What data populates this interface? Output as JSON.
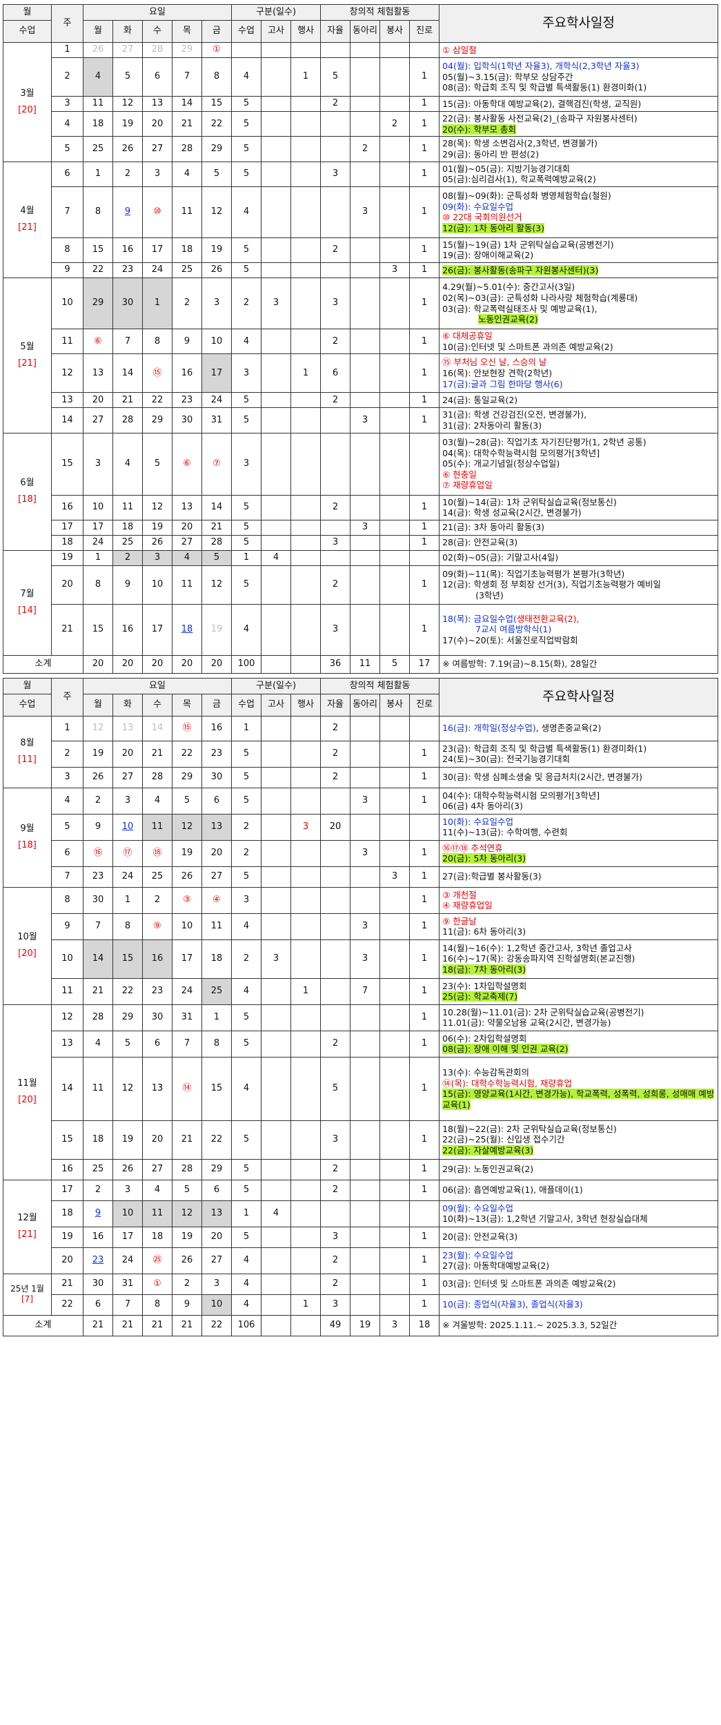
{
  "headers": {
    "month": "월",
    "week": "주",
    "yoil": "요일",
    "gubun": "구분(일수)",
    "act": "창의적 체험활동",
    "class_days": "수업",
    "mon": "월",
    "tue": "화",
    "wed": "수",
    "thu": "목",
    "fri": "금",
    "classes": "수업",
    "exam": "고사",
    "event": "행사",
    "self": "자율",
    "club": "동아리",
    "volunteer": "봉사",
    "career": "진로",
    "schedule": "주요학사일정"
  },
  "months": {
    "m3": {
      "name": "3월",
      "days": "[20]"
    },
    "m4": {
      "name": "4월",
      "days": "[21]"
    },
    "m5": {
      "name": "5월",
      "days": "[21]"
    },
    "m6": {
      "name": "6월",
      "days": "[18]"
    },
    "m7": {
      "name": "7월",
      "days": "[14]"
    },
    "m8": {
      "name": "8월",
      "days": "[11]"
    },
    "m9": {
      "name": "9월",
      "days": "[18]"
    },
    "m10": {
      "name": "10월",
      "days": "[20]"
    },
    "m11": {
      "name": "11월",
      "days": "[20]"
    },
    "m12": {
      "name": "12월",
      "days": "[21]"
    },
    "m1": {
      "name": "25년 1월",
      "days": "[7]"
    }
  },
  "rows": [
    {
      "w": "1",
      "d": [
        "26",
        "27",
        "28",
        "29",
        "①"
      ],
      "c": [
        "",
        "",
        "",
        "",
        "",
        "",
        "",
        ""
      ],
      "s": [
        "① 삼일절"
      ]
    },
    {
      "w": "2",
      "d": [
        "4",
        "5",
        "6",
        "7",
        "8"
      ],
      "c": [
        "4",
        "",
        "1",
        "5",
        "",
        "",
        "1"
      ],
      "s": [
        "04(월): 입학식(1학년 자율3), 개학식(2,3학년 자율3)",
        "05(월)~3.15(금): 학부모 상담주간",
        "08(금): 학급회 조직 및 학급별 특색활동(1) 환경미화(1)"
      ]
    },
    {
      "w": "3",
      "d": [
        "11",
        "12",
        "13",
        "14",
        "15"
      ],
      "c": [
        "5",
        "",
        "",
        "2",
        "",
        "",
        "1"
      ],
      "s": [
        "15(금): 아동학대 예방교육(2), 결핵검진(학생, 교직원)"
      ]
    },
    {
      "w": "4",
      "d": [
        "18",
        "19",
        "20",
        "21",
        "22"
      ],
      "c": [
        "5",
        "",
        "",
        "",
        "",
        "2",
        "1"
      ],
      "s": [
        "22(금): 봉사활동 사전교육(2)_(송파구 자원봉사센터)",
        "20(수): 학부모 총회"
      ]
    },
    {
      "w": "5",
      "d": [
        "25",
        "26",
        "27",
        "28",
        "29"
      ],
      "c": [
        "5",
        "",
        "",
        "",
        "2",
        "",
        "1"
      ],
      "s": [
        "28(목): 학생 소변검사(2,3학년, 변경불가)",
        "29(금): 동아리 반 편성(2)"
      ]
    },
    {
      "w": "6",
      "d": [
        "1",
        "2",
        "3",
        "4",
        "5"
      ],
      "c": [
        "5",
        "",
        "",
        "3",
        "",
        "",
        "1"
      ],
      "s": [
        "01(월)~05(금): 지방기능경기대회",
        "05(금):심리검사(1), 학교폭력예방교육(2)"
      ]
    },
    {
      "w": "7",
      "d": [
        "8",
        "9",
        "⑩",
        "11",
        "12"
      ],
      "c": [
        "4",
        "",
        "",
        "",
        "3",
        "",
        "1"
      ],
      "s": [
        "08(월)~09(화): 군특성화 병영체험학습(철원)",
        "09(화): 수요일수업",
        "⑩ 22대 국회의원선거",
        "12(금): 1차 동아리 활동(3)"
      ]
    },
    {
      "w": "8",
      "d": [
        "15",
        "16",
        "17",
        "18",
        "19"
      ],
      "c": [
        "5",
        "",
        "",
        "2",
        "",
        "",
        "1"
      ],
      "s": [
        "15(월)~19(금) 1차 군위탁실습교육(공병전기)",
        "19(금): 장애이해교육(2)"
      ]
    },
    {
      "w": "9",
      "d": [
        "22",
        "23",
        "24",
        "25",
        "26"
      ],
      "c": [
        "5",
        "",
        "",
        "",
        "",
        "3",
        "1"
      ],
      "s": [
        "26(금): 봉사활동(송파구 자원봉사센터)(3)"
      ]
    },
    {
      "w": "10",
      "d": [
        "29",
        "30",
        "1",
        "2",
        "3"
      ],
      "c": [
        "2",
        "3",
        "",
        "3",
        "",
        "",
        "1"
      ],
      "s": [
        "4.29(월)~5.01(수): 중간고사(3일)",
        "02(목)~03(금): 군특성화 나라사랑 체험학습(계룡대)",
        "03(금): 학교폭력실태조사 및 예방교육(1),",
        "노동인권교육(2)"
      ]
    },
    {
      "w": "11",
      "d": [
        "⑥",
        "7",
        "8",
        "9",
        "10"
      ],
      "c": [
        "4",
        "",
        "",
        "2",
        "",
        "",
        "1"
      ],
      "s": [
        "⑥ 대체공휴일",
        "10(금):인터넷 및 스마트폰 과의존 예방교육(2)"
      ]
    },
    {
      "w": "12",
      "d": [
        "13",
        "14",
        "⑮",
        "16",
        "17"
      ],
      "c": [
        "3",
        "",
        "1",
        "6",
        "",
        "",
        "1"
      ],
      "s": [
        "⑮ 부처님 오신 날, 스승의 날",
        "16(목): 안보현장 견학(2학년)",
        "17(금):글과 그림 한마당 행사(6)"
      ]
    },
    {
      "w": "13",
      "d": [
        "20",
        "21",
        "22",
        "23",
        "24"
      ],
      "c": [
        "5",
        "",
        "",
        "2",
        "",
        "",
        "1"
      ],
      "s": [
        "24(금): 통일교육(2)"
      ]
    },
    {
      "w": "14",
      "d": [
        "27",
        "28",
        "29",
        "30",
        "31"
      ],
      "c": [
        "5",
        "",
        "",
        "",
        "3",
        "",
        "1"
      ],
      "s": [
        "31(금): 학생 건강검진(오전, 변경불가),",
        "31(금): 2차동아리 활동(3)"
      ]
    },
    {
      "w": "15",
      "d": [
        "3",
        "4",
        "5",
        "⑥",
        "⑦"
      ],
      "c": [
        "3",
        "",
        "",
        "",
        "",
        "",
        ""
      ],
      "s": [
        "03(월)~28(금): 직업기초 자기진단평가(1, 2학년 공통)",
        "04(목): 대학수학능력시험 모의평가[3학년]",
        "05(수): 개교기념일(정상수업일)",
        "⑥ 현충일",
        "⑦ 재량휴업일"
      ]
    },
    {
      "w": "16",
      "d": [
        "10",
        "11",
        "12",
        "13",
        "14"
      ],
      "c": [
        "5",
        "",
        "",
        "2",
        "",
        "",
        "1"
      ],
      "s": [
        "10(월)~14(금): 1차 군위탁실습교육(정보통신)",
        "14(금): 학생 성교육(2시간, 변경불가)"
      ]
    },
    {
      "w": "17",
      "d": [
        "17",
        "18",
        "19",
        "20",
        "21"
      ],
      "c": [
        "5",
        "",
        "",
        "",
        "3",
        "",
        "1"
      ],
      "s": [
        "21(금): 3차 동아리 활동(3)"
      ]
    },
    {
      "w": "18",
      "d": [
        "24",
        "25",
        "26",
        "27",
        "28"
      ],
      "c": [
        "5",
        "",
        "",
        "3",
        "",
        "",
        "1"
      ],
      "s": [
        "28(금): 안전교육(3)"
      ]
    },
    {
      "w": "19",
      "d": [
        "1",
        "2",
        "3",
        "4",
        "5"
      ],
      "c": [
        "1",
        "4",
        "",
        "",
        "",
        "",
        ""
      ],
      "s": [
        "02(화)~05(금): 기말고사(4일)"
      ]
    },
    {
      "w": "20",
      "d": [
        "8",
        "9",
        "10",
        "11",
        "12"
      ],
      "c": [
        "5",
        "",
        "",
        "2",
        "",
        "",
        "1"
      ],
      "s": [
        "09(화)~11(목): 직업기초능력평가 본평가(3학년)",
        "12(금): 학생회 정 부회장 선거(3), 직업기초능력평가 예비일",
        "(3학년)"
      ]
    },
    {
      "w": "21",
      "d": [
        "15",
        "16",
        "17",
        "18",
        "19"
      ],
      "c": [
        "4",
        "",
        "",
        "3",
        "",
        "",
        "1"
      ],
      "s": [
        "18(목): 금요일수업(",
        "생태전환교육(2),",
        "7교시 여름방학식(1)",
        "17(수)~20(토): 서울진로직업박람회"
      ]
    },
    {
      "w": "1",
      "d": [
        "12",
        "13",
        "14",
        "⑮",
        "16"
      ],
      "c": [
        "1",
        "",
        "",
        "2",
        "",
        "",
        ""
      ],
      "s": [
        "16(금): 개학일(정상수업)",
        ", 생명존중교육(2)"
      ]
    },
    {
      "w": "2",
      "d": [
        "19",
        "20",
        "21",
        "22",
        "23"
      ],
      "c": [
        "5",
        "",
        "",
        "2",
        "",
        "",
        "1"
      ],
      "s": [
        "23(금): 학급회 조직 및 학급별 특색활동(1) 환경미화(1)",
        "24(토)~30(금): 전국기능경기대회"
      ]
    },
    {
      "w": "3",
      "d": [
        "26",
        "27",
        "28",
        "29",
        "30"
      ],
      "c": [
        "5",
        "",
        "",
        "2",
        "",
        "",
        "1"
      ],
      "s": [
        "30(금): 학생 심폐소생술 및 응급처치(2시간, 변경불가)"
      ]
    },
    {
      "w": "4",
      "d": [
        "2",
        "3",
        "4",
        "5",
        "6"
      ],
      "c": [
        "5",
        "",
        "",
        "",
        "3",
        "",
        "1"
      ],
      "s": [
        "04(수): 대학수학능력시험 모의평가[3학년]",
        "06(금) 4차 동아리(3)"
      ]
    },
    {
      "w": "5",
      "d": [
        "9",
        "10",
        "11",
        "12",
        "13"
      ],
      "c": [
        "2",
        "",
        "3",
        "20",
        "",
        "",
        ""
      ],
      "s": [
        "10(화): 수요일수업",
        "11(수)~13(금): 수학여행, 수련회"
      ]
    },
    {
      "w": "6",
      "d": [
        "⑯",
        "⑰",
        "⑱",
        "19",
        "20"
      ],
      "c": [
        "2",
        "",
        "",
        "",
        "3",
        "",
        "1"
      ],
      "s": [
        "⑯⑰⑱ 추석연휴",
        "20(금): 5차 동아리(3)"
      ]
    },
    {
      "w": "7",
      "d": [
        "23",
        "24",
        "25",
        "26",
        "27"
      ],
      "c": [
        "5",
        "",
        "",
        "",
        "",
        "3",
        "1"
      ],
      "s": [
        "27(금):학급별 봉사활동(3)"
      ]
    },
    {
      "w": "8",
      "d": [
        "30",
        "1",
        "2",
        "③",
        "④"
      ],
      "c": [
        "3",
        "",
        "",
        "",
        "",
        "",
        "1"
      ],
      "s": [
        "③ 개천절",
        "④ 재량휴업일"
      ]
    },
    {
      "w": "9",
      "d": [
        "7",
        "8",
        "⑨",
        "10",
        "11"
      ],
      "c": [
        "4",
        "",
        "",
        "",
        "3",
        "",
        "1"
      ],
      "s": [
        "⑨ 한글날",
        "11(금): 6차 동아리(3)"
      ]
    },
    {
      "w": "10",
      "d": [
        "14",
        "15",
        "16",
        "17",
        "18"
      ],
      "c": [
        "2",
        "3",
        "",
        "",
        "3",
        "",
        "1"
      ],
      "s": [
        "14(월)~16(수): 1,2학년 중간고사, 3학년 졸업고사",
        "16(수)~17(목): 강동송파지역 진학설명회(본교진행)",
        "18(금): 7차 동아리(3)"
      ]
    },
    {
      "w": "11",
      "d": [
        "21",
        "22",
        "23",
        "24",
        "25"
      ],
      "c": [
        "4",
        "",
        "1",
        "",
        "7",
        "",
        "1"
      ],
      "s": [
        "23(수): 1차입학설명회",
        "25(금): 학교축제(7)"
      ]
    },
    {
      "w": "12",
      "d": [
        "28",
        "29",
        "30",
        "31",
        "1"
      ],
      "c": [
        "5",
        "",
        "",
        "",
        "",
        "",
        "1"
      ],
      "s": [
        "10.28(월)~11.01(금): 2차 군위탁실습교육(공병전기)",
        "11.01(금): 약물오남용 교육(2시간, 변경가능)"
      ]
    },
    {
      "w": "13",
      "d": [
        "4",
        "5",
        "6",
        "7",
        "8"
      ],
      "c": [
        "5",
        "",
        "",
        "2",
        "",
        "",
        "1"
      ],
      "s": [
        "06(수): 2차입학설명회",
        "08(금): 장애 이해 및 인권 교육(2)"
      ]
    },
    {
      "w": "14",
      "d": [
        "11",
        "12",
        "13",
        "⑭",
        "15"
      ],
      "c": [
        "4",
        "",
        "",
        "5",
        "",
        "",
        "1"
      ],
      "s": [
        "13(수): 수능감독관회의",
        "⑭(목): 대학수학능력시험, 재량휴업",
        "15(금): 영양교육(1시간, 변경가능), 학교폭력, 성폭력, 성희롱, 성매매 예방교육(1)"
      ]
    },
    {
      "w": "15",
      "d": [
        "18",
        "19",
        "20",
        "21",
        "22"
      ],
      "c": [
        "5",
        "",
        "",
        "3",
        "",
        "",
        "1"
      ],
      "s": [
        "18(월)~22(금): 2차 군위탁실습교육(정보통신)",
        "22(금)~25(월): 신입생 접수기간",
        "22(금): 자살예방교육(3)"
      ]
    },
    {
      "w": "16",
      "d": [
        "25",
        "26",
        "27",
        "28",
        "29"
      ],
      "c": [
        "5",
        "",
        "",
        "2",
        "",
        "",
        "1"
      ],
      "s": [
        "29(금): 노동인권교육(2)"
      ]
    },
    {
      "w": "17",
      "d": [
        "2",
        "3",
        "4",
        "5",
        "6"
      ],
      "c": [
        "5",
        "",
        "",
        "2",
        "",
        "",
        "1"
      ],
      "s": [
        "06(금): 흡연예방교육(1), 애플데이(1)"
      ]
    },
    {
      "w": "18",
      "d": [
        "9",
        "10",
        "11",
        "12",
        "13"
      ],
      "c": [
        "1",
        "4",
        "",
        "",
        "",
        "",
        ""
      ],
      "s": [
        "09(월): 수요일수업",
        "10(화)~13(금): 1,2학년 기말고사, 3학년 현장실습대체"
      ]
    },
    {
      "w": "19",
      "d": [
        "16",
        "17",
        "18",
        "19",
        "20"
      ],
      "c": [
        "5",
        "",
        "",
        "3",
        "",
        "",
        "1"
      ],
      "s": [
        "20(금): 안전교육(3)"
      ]
    },
    {
      "w": "20",
      "d": [
        "23",
        "24",
        "㉕",
        "26",
        "27"
      ],
      "c": [
        "4",
        "",
        "",
        "2",
        "",
        "",
        "1"
      ],
      "s": [
        "23(월): 수요일수업",
        "27(금): 아동학대예방교육(2)"
      ]
    },
    {
      "w": "21",
      "d": [
        "30",
        "31",
        "①",
        "2",
        "3"
      ],
      "c": [
        "4",
        "",
        "",
        "2",
        "",
        "",
        "1"
      ],
      "s": [
        "03(금): 인터넷 및 스마트폰 과의존 예방교육(2)"
      ]
    },
    {
      "w": "22",
      "d": [
        "6",
        "7",
        "8",
        "9",
        "10"
      ],
      "c": [
        "4",
        "",
        "1",
        "3",
        "",
        "",
        "1"
      ],
      "s": [
        "10(금): 종업식(자율3), 졸업식(자율3)"
      ]
    }
  ],
  "totals1": {
    "label": "소계",
    "vals": [
      "20",
      "20",
      "20",
      "20",
      "20",
      "100",
      "",
      "",
      "36",
      "11",
      "5",
      "17"
    ],
    "note": "※ 여름방학: 7.19(금)~8.15(화), 28일간"
  },
  "totals2": {
    "label": "소계",
    "vals": [
      "21",
      "21",
      "21",
      "21",
      "22",
      "106",
      "",
      "",
      "49",
      "19",
      "3",
      "18"
    ],
    "note": "※ 겨울방학: 2025.1.11.~ 2025.3.3, 52일간"
  }
}
